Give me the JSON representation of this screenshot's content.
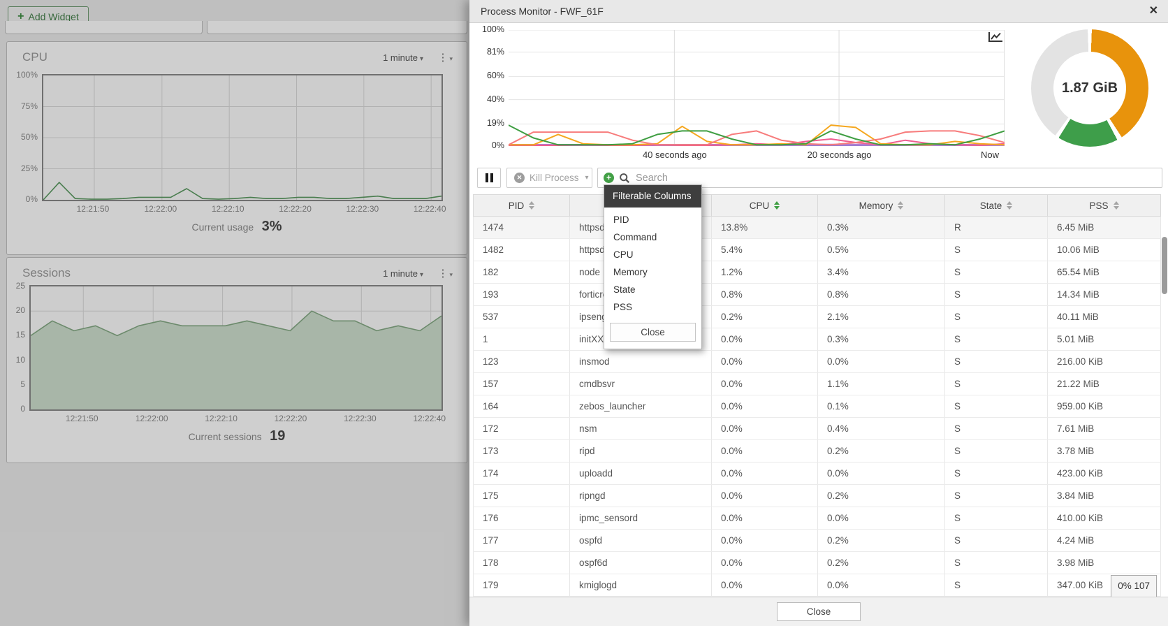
{
  "icons": {
    "close": "✕",
    "caret": "▾",
    "kebab": "⋮",
    "plus": "+"
  },
  "dashboard": {
    "add_widget": "Add Widget",
    "widgets": [
      {
        "title": "CPU",
        "period": "1 minute",
        "current_label": "Current usage",
        "current_value": "3%"
      },
      {
        "title": "Sessions",
        "period": "1 minute",
        "current_label": "Current sessions",
        "current_value": "19"
      }
    ]
  },
  "dialog": {
    "title": "Process Monitor - FWF_61F",
    "toolbar": {
      "kill_process": "Kill Process",
      "search_placeholder": "Search"
    },
    "filter_dropdown": {
      "title": "Filterable Columns",
      "items": [
        "PID",
        "Command",
        "CPU",
        "Memory",
        "State",
        "PSS"
      ],
      "close": "Close"
    },
    "table": {
      "columns": [
        {
          "label": "PID",
          "sort_active": false
        },
        {
          "label": "Command",
          "sort_active": false
        },
        {
          "label": "CPU",
          "sort_active": true
        },
        {
          "label": "Memory",
          "sort_active": false
        },
        {
          "label": "State",
          "sort_active": false
        },
        {
          "label": "PSS",
          "sort_active": false
        }
      ],
      "rows": [
        [
          "1474",
          "httpsd",
          "13.8%",
          "0.3%",
          "R",
          "6.45 MiB"
        ],
        [
          "1482",
          "httpsd",
          "5.4%",
          "0.5%",
          "S",
          "10.06 MiB"
        ],
        [
          "182",
          "node",
          "1.2%",
          "3.4%",
          "S",
          "65.54 MiB"
        ],
        [
          "193",
          "forticron",
          "0.8%",
          "0.8%",
          "S",
          "14.34 MiB"
        ],
        [
          "537",
          "ipsengine",
          "0.2%",
          "2.1%",
          "S",
          "40.11 MiB"
        ],
        [
          "1",
          "initXXXXXXXXXX",
          "0.0%",
          "0.3%",
          "S",
          "5.01 MiB"
        ],
        [
          "123",
          "insmod",
          "0.0%",
          "0.0%",
          "S",
          "216.00 KiB"
        ],
        [
          "157",
          "cmdbsvr",
          "0.0%",
          "1.1%",
          "S",
          "21.22 MiB"
        ],
        [
          "164",
          "zebos_launcher",
          "0.0%",
          "0.1%",
          "S",
          "959.00 KiB"
        ],
        [
          "172",
          "nsm",
          "0.0%",
          "0.4%",
          "S",
          "7.61 MiB"
        ],
        [
          "173",
          "ripd",
          "0.0%",
          "0.2%",
          "S",
          "3.78 MiB"
        ],
        [
          "174",
          "uploadd",
          "0.0%",
          "0.0%",
          "S",
          "423.00 KiB"
        ],
        [
          "175",
          "ripngd",
          "0.0%",
          "0.2%",
          "S",
          "3.84 MiB"
        ],
        [
          "176",
          "ipmc_sensord",
          "0.0%",
          "0.0%",
          "S",
          "410.00 KiB"
        ],
        [
          "177",
          "ospfd",
          "0.0%",
          "0.2%",
          "S",
          "4.24 MiB"
        ],
        [
          "178",
          "ospf6d",
          "0.0%",
          "0.2%",
          "S",
          "3.98 MiB"
        ],
        [
          "179",
          "kmiglogd",
          "0.0%",
          "0.0%",
          "S",
          "347.00 KiB"
        ]
      ]
    },
    "footer": {
      "close": "Close"
    },
    "status_badge": "0% 107"
  },
  "chart_data": {
    "process_chart": {
      "type": "line",
      "unit": "percent",
      "x_labels": [
        "40 seconds ago",
        "20 seconds ago",
        "Now"
      ],
      "y_ticks": [
        {
          "label": "100%",
          "value": 100
        },
        {
          "label": "81%",
          "value": 81
        },
        {
          "label": "60%",
          "value": 60
        },
        {
          "label": "40%",
          "value": 40
        },
        {
          "label": "19%",
          "value": 19
        },
        {
          "label": "0%",
          "value": 0
        }
      ],
      "ymax": 100,
      "series": [
        {
          "name": "series-blue",
          "color": "#4f81d1",
          "width": 2,
          "values": [
            0.4,
            0.4,
            0.4,
            0.4,
            0.4,
            0.4,
            0.4,
            0.4,
            0.4,
            0.4,
            0.4,
            0.4,
            0.4,
            0.4,
            0.4,
            0.4,
            0.4,
            0.4,
            0.5,
            0.5,
            0.5
          ]
        },
        {
          "name": "series-purple",
          "color": "#b07fd1",
          "width": 3,
          "values": [
            0.9,
            0.9,
            0.9,
            0.9,
            0.9,
            0.9,
            0.9,
            0.9,
            0.9,
            0.9,
            0.9,
            0.9,
            1,
            1,
            1,
            0.9,
            0.9,
            0.9,
            0.9,
            0.9,
            0.9
          ]
        },
        {
          "name": "series-pink",
          "color": "#ef5f8f",
          "width": 2,
          "values": [
            0.6,
            0.6,
            0.6,
            1,
            0.6,
            0.6,
            1,
            0.6,
            0.6,
            1,
            2,
            1,
            4,
            6,
            3,
            1,
            5,
            2,
            1,
            0.6,
            2
          ]
        },
        {
          "name": "series-orange",
          "color": "#f5a71f",
          "width": 2,
          "values": [
            1,
            1,
            10,
            2,
            1,
            1,
            2,
            17,
            4,
            1,
            1,
            2,
            1,
            18,
            16,
            2,
            1,
            1,
            4,
            2,
            1
          ]
        },
        {
          "name": "series-red",
          "color": "#f77c7c",
          "width": 2,
          "values": [
            1,
            12,
            12,
            12,
            12,
            5,
            1,
            1,
            1,
            10,
            13,
            5,
            2,
            1,
            3,
            6,
            12,
            13,
            13,
            9,
            3
          ]
        },
        {
          "name": "series-green",
          "color": "#3f9e42",
          "width": 2,
          "values": [
            18,
            7,
            1,
            1,
            1,
            2,
            10,
            13,
            13,
            6,
            1,
            1,
            2,
            13,
            6,
            1,
            1,
            2,
            1,
            6,
            13
          ]
        }
      ]
    },
    "memory_donut": {
      "type": "pie",
      "label": "1.87 GiB",
      "segments": [
        {
          "name": "used-orange",
          "color": "#e8930c",
          "from_deg": 2,
          "to_deg": 147
        },
        {
          "name": "used-green",
          "color": "#3e9e4a",
          "from_deg": 152,
          "to_deg": 212
        },
        {
          "name": "free-gray",
          "color": "#e3e3e3",
          "from_deg": 216,
          "to_deg": 358
        }
      ]
    },
    "cpu_widget_chart": {
      "type": "line",
      "title": "CPU",
      "color": "#5b9b61",
      "ymax": 100,
      "y_ticks": [
        {
          "label": "100%",
          "value": 100
        },
        {
          "label": "75%",
          "value": 75
        },
        {
          "label": "50%",
          "value": 50
        },
        {
          "label": "25%",
          "value": 25
        },
        {
          "label": "0%",
          "value": 0
        }
      ],
      "x_labels": [
        "12:21:50",
        "12:22:00",
        "12:22:10",
        "12:22:20",
        "12:22:30",
        "12:22:40"
      ],
      "values": [
        0,
        14,
        1,
        0.5,
        0.5,
        1,
        2,
        2,
        2,
        9,
        1,
        0.5,
        1,
        2,
        1,
        1,
        2,
        2,
        1,
        1,
        2,
        3,
        1,
        1,
        1,
        3
      ]
    },
    "sessions_widget_chart": {
      "type": "area",
      "title": "Sessions",
      "line_color": "#86ab86",
      "fill_color": "#cfe0cf",
      "ymax": 25,
      "y_ticks": [
        {
          "label": "25",
          "value": 25
        },
        {
          "label": "20",
          "value": 20
        },
        {
          "label": "15",
          "value": 15
        },
        {
          "label": "10",
          "value": 10
        },
        {
          "label": "5",
          "value": 5
        },
        {
          "label": "0",
          "value": 0
        }
      ],
      "x_labels": [
        "12:21:50",
        "12:22:00",
        "12:22:10",
        "12:22:20",
        "12:22:30",
        "12:22:40"
      ],
      "values": [
        15,
        18,
        16,
        17,
        15,
        17,
        18,
        17,
        17,
        17,
        18,
        17,
        16,
        20,
        18,
        18,
        16,
        17,
        16,
        19
      ]
    }
  }
}
